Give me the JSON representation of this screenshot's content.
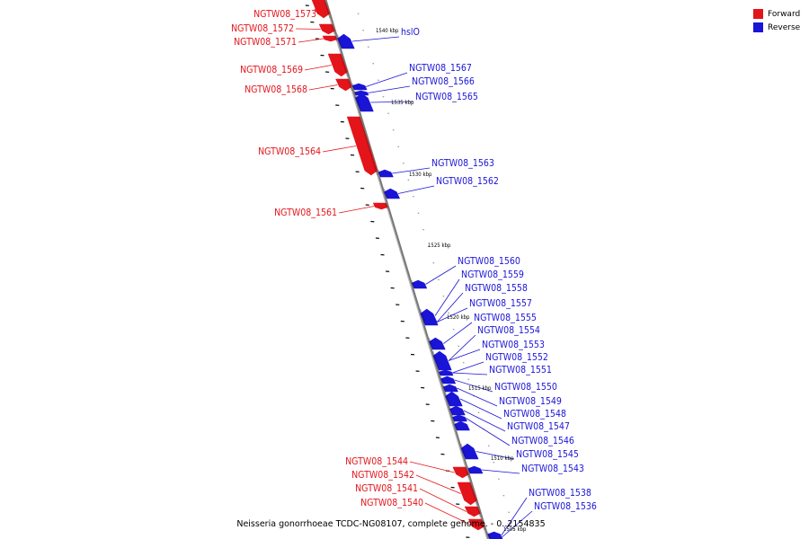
{
  "legend": {
    "forward_label": "Forward",
    "reverse_label": "Reverse",
    "forward_color": "#e3141a",
    "reverse_color": "#1a14d6"
  },
  "caption": "Neisseria gonorrhoeae TCDC-NG08107, complete genome. - 0..2154835",
  "scale_labels": [
    "1540 kbp",
    "1535 kbp",
    "1530 kbp",
    "1525 kbp",
    "1520 kbp",
    "1515 kbp",
    "1510 kbp",
    "1505 kbp"
  ],
  "forward_genes": [
    "NGTW08_1573",
    "NGTW08_1572",
    "NGTW08_1571",
    "NGTW08_1569",
    "NGTW08_1568",
    "NGTW08_1564",
    "NGTW08_1561",
    "NGTW08_1544",
    "NGTW08_1542",
    "NGTW08_1541",
    "NGTW08_1540"
  ],
  "reverse_genes": [
    "hslO",
    "NGTW08_1567",
    "NGTW08_1566",
    "NGTW08_1565",
    "NGTW08_1563",
    "NGTW08_1562",
    "NGTW08_1560",
    "NGTW08_1559",
    "NGTW08_1558",
    "NGTW08_1557",
    "NGTW08_1555",
    "NGTW08_1554",
    "NGTW08_1553",
    "NGTW08_1552",
    "NGTW08_1551",
    "NGTW08_1550",
    "NGTW08_1549",
    "NGTW08_1548",
    "NGTW08_1547",
    "NGTW08_1546",
    "NGTW08_1545",
    "NGTW08_1543",
    "NGTW08_1538",
    "NGTW08_1536"
  ]
}
